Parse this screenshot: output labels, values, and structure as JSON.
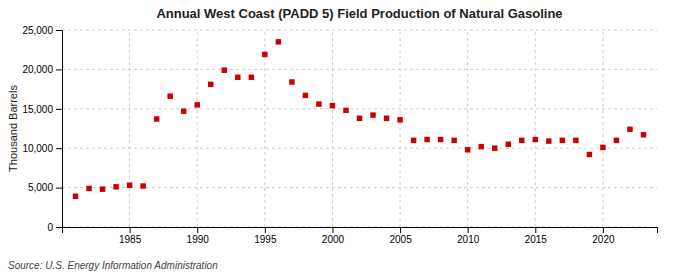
{
  "chart_data": {
    "type": "scatter",
    "title": "Annual West Coast (PADD 5) Field Production of Natural Gasoline",
    "ylabel": "Thousand Barrels",
    "source": "Source: U.S. Energy Information Administration",
    "x": [
      1981,
      1982,
      1983,
      1984,
      1985,
      1986,
      1987,
      1988,
      1989,
      1990,
      1991,
      1992,
      1993,
      1994,
      1995,
      1996,
      1997,
      1998,
      1999,
      2000,
      2001,
      2002,
      2003,
      2004,
      2005,
      2006,
      2007,
      2008,
      2009,
      2010,
      2011,
      2012,
      2013,
      2014,
      2015,
      2016,
      2017,
      2018,
      2019,
      2020,
      2021,
      2022,
      2023
    ],
    "values": [
      3900,
      4900,
      4800,
      5100,
      5300,
      5200,
      13700,
      16600,
      14700,
      15500,
      18100,
      19900,
      19000,
      19000,
      21900,
      23500,
      18400,
      16700,
      15600,
      15400,
      14800,
      13800,
      14200,
      13800,
      13600,
      11000,
      11100,
      11100,
      11000,
      9800,
      10200,
      10000,
      10500,
      11000,
      11100,
      10900,
      11000,
      11000,
      9200,
      10100,
      11000,
      12400,
      11700
    ],
    "color": "#cc0000",
    "marker": "square",
    "xlim": [
      1980,
      2024
    ],
    "xticks": [
      1985,
      1990,
      1995,
      2000,
      2005,
      2010,
      2015,
      2020
    ],
    "ylim": [
      0,
      25000
    ],
    "yticks": [
      0,
      {
        "value": 5000,
        "label": "5,000"
      },
      {
        "value": 10000,
        "label": "10,000"
      },
      {
        "value": 15000,
        "label": "15,000"
      },
      {
        "value": 20000,
        "label": "20,000"
      },
      {
        "value": 25000,
        "label": "25,000"
      }
    ],
    "grid": true
  }
}
